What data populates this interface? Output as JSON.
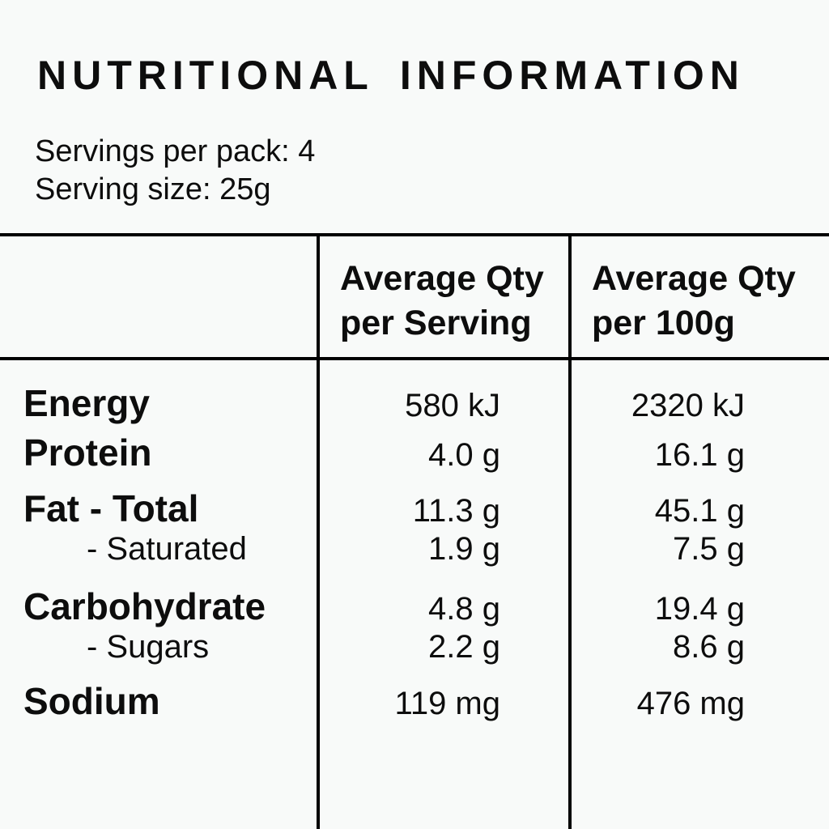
{
  "colors": {
    "background": "#f8faf9",
    "text": "#0d0d0d",
    "rule": "#000000"
  },
  "title": "NUTRITIONAL INFORMATION",
  "serving_info": {
    "servings_per_pack": "Servings per pack: 4",
    "serving_size": "Serving size: 25g"
  },
  "table": {
    "header": {
      "per_serving": [
        "Average Qty",
        "per Serving"
      ],
      "per_100g": [
        "Average Qty",
        "per 100g"
      ]
    },
    "rows": [
      {
        "nutrient": "Energy",
        "sub": false,
        "per_serving": "580 kJ",
        "per_100g": "2320 kJ"
      },
      {
        "nutrient": "Protein",
        "sub": false,
        "per_serving": "4.0 g",
        "per_100g": "16.1 g"
      },
      {
        "nutrient": "Fat - Total",
        "sub": false,
        "per_serving": "11.3 g",
        "per_100g": "45.1 g"
      },
      {
        "nutrient": "- Saturated",
        "sub": true,
        "per_serving": "1.9 g",
        "per_100g": "7.5 g"
      },
      {
        "nutrient": "Carbohydrate",
        "sub": false,
        "per_serving": "4.8 g",
        "per_100g": "19.4 g"
      },
      {
        "nutrient": "- Sugars",
        "sub": true,
        "per_serving": "2.2 g",
        "per_100g": "8.6 g"
      },
      {
        "nutrient": "Sodium",
        "sub": false,
        "per_serving": "119 mg",
        "per_100g": "476 mg"
      }
    ]
  }
}
